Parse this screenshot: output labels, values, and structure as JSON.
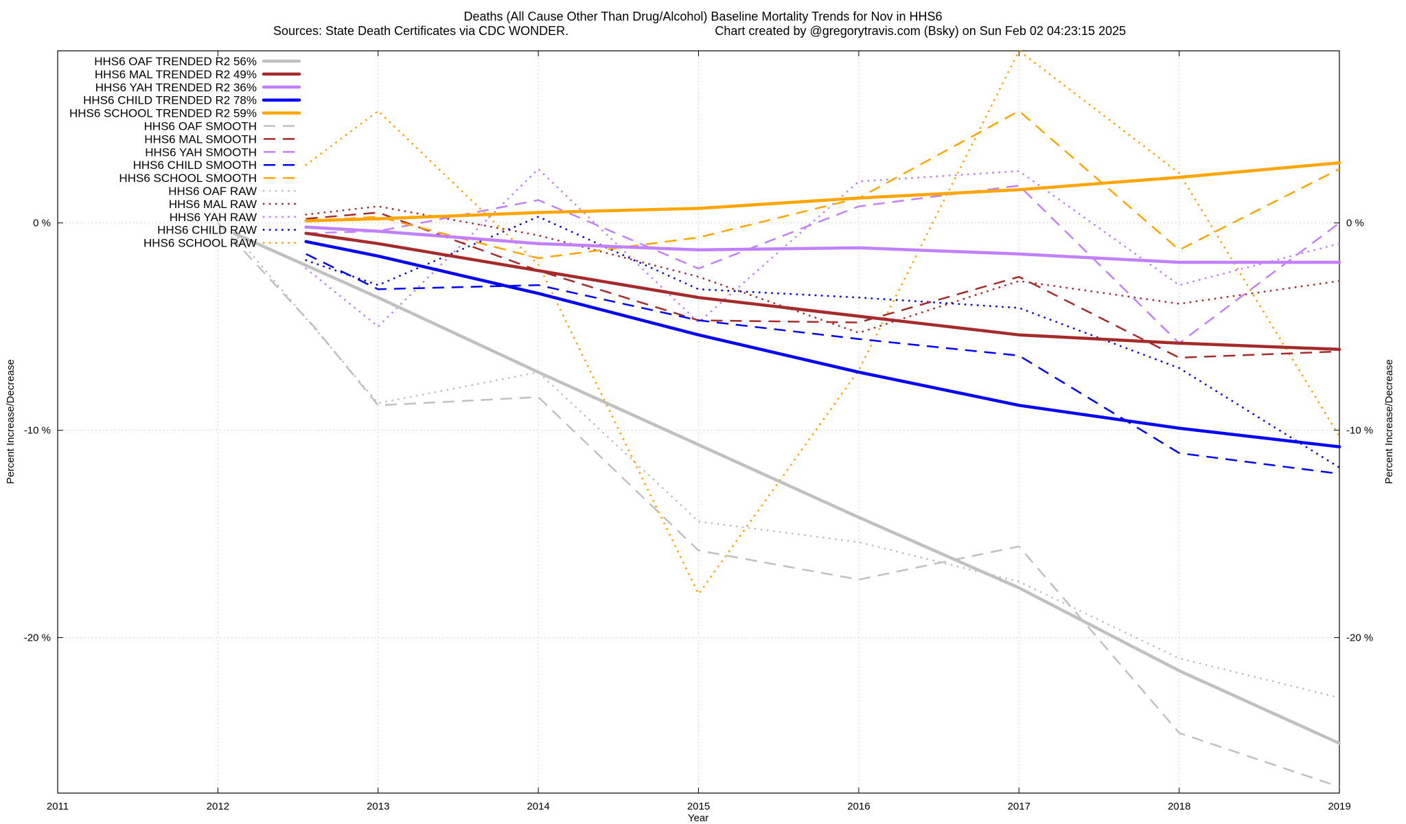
{
  "chart_data": {
    "type": "line",
    "title": "Deaths (All Cause Other Than Drug/Alcohol)  Baseline Mortality Trends for Nov in HHS6",
    "subtitle_left": "Sources: State Death Certificates via CDC WONDER.",
    "subtitle_right": "Chart created by @gregorytravis.com (Bsky) on Sun Feb 02 04:23:15 2025",
    "xlabel": "Year",
    "ylabel_left": "Percent Increase/Decrease",
    "ylabel_right": "Percent Increase/Decrease",
    "xlim": [
      2011,
      2019
    ],
    "ylim": [
      -27.5,
      8.3
    ],
    "x_ticks": [
      "2011",
      "2012",
      "2013",
      "2014",
      "2015",
      "2016",
      "2017",
      "2018",
      "2019"
    ],
    "y_ticks": [
      {
        "value": 0,
        "label": "0 %"
      },
      {
        "value": -10,
        "label": "-10 %"
      },
      {
        "value": -20,
        "label": "-20 %"
      }
    ],
    "grid": true,
    "legend_position": "top-left",
    "series": [
      {
        "name": "HHS6 OAF TRENDED R2  56%",
        "color": "#c0c0c0",
        "style": "solid",
        "x": [
          2012.1,
          2013,
          2014,
          2015,
          2016,
          2017,
          2018,
          2019
        ],
        "y": [
          -0.5,
          -3.6,
          -7.2,
          -10.7,
          -14.2,
          -17.6,
          -21.6,
          -25.1
        ]
      },
      {
        "name": "HHS6 MAL TRENDED R2  49%",
        "color": "#a52a2a",
        "style": "solid",
        "x": [
          2012.55,
          2013,
          2014,
          2015,
          2016,
          2017,
          2018,
          2019
        ],
        "y": [
          -0.5,
          -1.0,
          -2.3,
          -3.6,
          -4.5,
          -5.4,
          -5.8,
          -6.1
        ]
      },
      {
        "name": "HHS6 YAH TRENDED R2  36%",
        "color": "#c080ff",
        "style": "solid",
        "x": [
          2012.55,
          2013,
          2014,
          2015,
          2016,
          2017,
          2018,
          2019
        ],
        "y": [
          -0.2,
          -0.4,
          -1.0,
          -1.3,
          -1.2,
          -1.5,
          -1.9,
          -1.9
        ]
      },
      {
        "name": "HHS6 CHILD TRENDED R2  78%",
        "color": "#0000ff",
        "style": "solid",
        "x": [
          2012.55,
          2013,
          2014,
          2015,
          2016,
          2017,
          2018,
          2019
        ],
        "y": [
          -0.9,
          -1.6,
          -3.4,
          -5.4,
          -7.2,
          -8.8,
          -9.9,
          -10.8
        ]
      },
      {
        "name": "HHS6 SCHOOL TRENDED R2  59%",
        "color": "#ffa500",
        "style": "solid",
        "x": [
          2012.55,
          2013,
          2014,
          2015,
          2016,
          2017,
          2018,
          2019
        ],
        "y": [
          0.1,
          0.2,
          0.5,
          0.7,
          1.2,
          1.6,
          2.2,
          2.9
        ]
      },
      {
        "name": "HHS6 OAF SMOOTH",
        "color": "#c0c0c0",
        "style": "dashed",
        "x": [
          2012,
          2012.6,
          2013,
          2014,
          2015,
          2016,
          2017,
          2018,
          2019
        ],
        "y": [
          0.0,
          -5.0,
          -8.8,
          -8.4,
          -15.8,
          -17.2,
          -15.6,
          -24.6,
          -27.2
        ]
      },
      {
        "name": "HHS6 MAL SMOOTH",
        "color": "#a52a2a",
        "style": "dashed",
        "x": [
          2012.55,
          2013,
          2014,
          2015,
          2016,
          2017,
          2018,
          2019
        ],
        "y": [
          0.2,
          0.5,
          -2.3,
          -4.7,
          -4.8,
          -2.6,
          -6.5,
          -6.2
        ]
      },
      {
        "name": "HHS6 YAH SMOOTH",
        "color": "#c080ff",
        "style": "dashed",
        "x": [
          2012.55,
          2013,
          2014,
          2015,
          2016,
          2017,
          2018,
          2019
        ],
        "y": [
          -0.5,
          -0.4,
          1.1,
          -2.2,
          0.8,
          1.8,
          -5.8,
          0.0
        ]
      },
      {
        "name": "HHS6 CHILD SMOOTH",
        "color": "#0000ff",
        "style": "dashed",
        "x": [
          2012.55,
          2013,
          2014,
          2015,
          2016,
          2017,
          2018,
          2019
        ],
        "y": [
          -1.5,
          -3.2,
          -3.0,
          -4.7,
          -5.6,
          -6.4,
          -11.1,
          -12.1
        ]
      },
      {
        "name": "HHS6 SCHOOL SMOOTH",
        "color": "#ffa500",
        "style": "dashed",
        "x": [
          2012.55,
          2013,
          2014,
          2015,
          2016,
          2017,
          2018,
          2019
        ],
        "y": [
          0.1,
          0.3,
          -1.7,
          -0.7,
          1.2,
          5.4,
          -1.3,
          2.6
        ]
      },
      {
        "name": "HHS6 OAF RAW",
        "color": "#c0c0c0",
        "style": "dotted",
        "x": [
          2012.1,
          2013,
          2014,
          2015,
          2016,
          2017,
          2018,
          2019
        ],
        "y": [
          -0.5,
          -8.7,
          -7.2,
          -14.4,
          -15.4,
          -17.3,
          -21.0,
          -22.9
        ]
      },
      {
        "name": "HHS6 MAL RAW",
        "color": "#a52a2a",
        "style": "dotted",
        "x": [
          2012.55,
          2013,
          2014,
          2015,
          2016,
          2017,
          2018,
          2019
        ],
        "y": [
          0.4,
          0.8,
          -0.6,
          -2.6,
          -5.3,
          -2.8,
          -3.9,
          -2.8
        ]
      },
      {
        "name": "HHS6 YAH RAW",
        "color": "#c080ff",
        "style": "dotted",
        "x": [
          2012.55,
          2013,
          2014,
          2015,
          2016,
          2017,
          2018,
          2019
        ],
        "y": [
          -2.2,
          -5.0,
          2.6,
          -4.8,
          2.0,
          2.5,
          -3.0,
          -1.0
        ]
      },
      {
        "name": "HHS6 CHILD RAW",
        "color": "#0000ff",
        "style": "dotted",
        "x": [
          2012.55,
          2013,
          2014,
          2015,
          2016,
          2017,
          2018,
          2019
        ],
        "y": [
          -1.8,
          -3.0,
          0.3,
          -3.2,
          -3.6,
          -4.1,
          -7.0,
          -11.8
        ]
      },
      {
        "name": "HHS6 SCHOOL RAW",
        "color": "#ffa500",
        "style": "dotted",
        "x": [
          2012.55,
          2013,
          2014,
          2015,
          2016,
          2017,
          2018,
          2019
        ],
        "y": [
          2.8,
          5.4,
          -2.0,
          -17.9,
          -7.1,
          8.3,
          2.4,
          -10.3
        ]
      }
    ]
  }
}
